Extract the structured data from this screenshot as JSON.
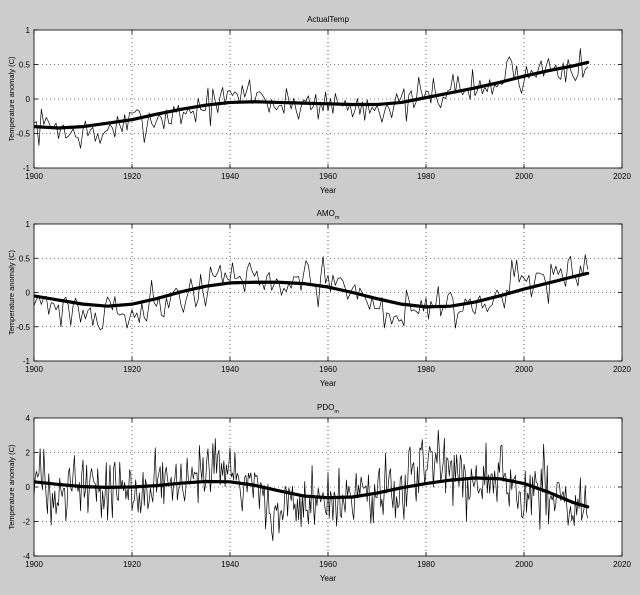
{
  "figure": {
    "background": "#cccccc",
    "axes_background": "#ffffff",
    "line_color": "#000000"
  },
  "chart_data": [
    {
      "type": "line",
      "title": "ActualTemp",
      "title_subscript": "",
      "xlabel": "Year",
      "ylabel": "Temperature anomaly (C)",
      "xlim": [
        1900,
        2020
      ],
      "ylim": [
        -1,
        1
      ],
      "xticks": [
        1900,
        1920,
        1940,
        1960,
        1980,
        2000,
        2020
      ],
      "yticks": [
        -1,
        -0.5,
        0,
        0.5,
        1
      ],
      "ytick_labels": [
        "-1",
        "-0.5",
        "0",
        "0.5",
        "1"
      ],
      "grid": true,
      "series": [
        {
          "style": "thin",
          "x_start": 1900,
          "x_end": 2013,
          "step": 0.5,
          "noise_amplitude": 0.13,
          "seed": 7,
          "anchors": [
            [
              1900,
              -0.42
            ],
            [
              1905,
              -0.36
            ],
            [
              1907,
              -0.55
            ],
            [
              1910,
              -0.47
            ],
            [
              1913,
              -0.6
            ],
            [
              1916,
              -0.35
            ],
            [
              1918,
              -0.45
            ],
            [
              1920,
              -0.32
            ],
            [
              1925,
              -0.28
            ],
            [
              1930,
              -0.2
            ],
            [
              1935,
              -0.1
            ],
            [
              1940,
              0.0
            ],
            [
              1944,
              0.12
            ],
            [
              1948,
              -0.02
            ],
            [
              1950,
              -0.12
            ],
            [
              1955,
              -0.05
            ],
            [
              1960,
              -0.05
            ],
            [
              1965,
              -0.12
            ],
            [
              1970,
              -0.08
            ],
            [
              1975,
              -0.12
            ],
            [
              1978,
              0.0
            ],
            [
              1983,
              0.1
            ],
            [
              1988,
              0.18
            ],
            [
              1992,
              0.12
            ],
            [
              1995,
              0.25
            ],
            [
              1998,
              0.48
            ],
            [
              2000,
              0.3
            ],
            [
              2005,
              0.5
            ],
            [
              2010,
              0.52
            ],
            [
              2013,
              0.4
            ]
          ]
        },
        {
          "style": "thick",
          "points": [
            [
              1900,
              -0.4
            ],
            [
              1905,
              -0.42
            ],
            [
              1910,
              -0.4
            ],
            [
              1915,
              -0.35
            ],
            [
              1920,
              -0.3
            ],
            [
              1925,
              -0.22
            ],
            [
              1930,
              -0.15
            ],
            [
              1935,
              -0.09
            ],
            [
              1940,
              -0.05
            ],
            [
              1945,
              -0.04
            ],
            [
              1950,
              -0.05
            ],
            [
              1955,
              -0.06
            ],
            [
              1960,
              -0.07
            ],
            [
              1965,
              -0.08
            ],
            [
              1970,
              -0.08
            ],
            [
              1975,
              -0.05
            ],
            [
              1980,
              0.02
            ],
            [
              1985,
              0.09
            ],
            [
              1990,
              0.16
            ],
            [
              1995,
              0.24
            ],
            [
              2000,
              0.33
            ],
            [
              2005,
              0.41
            ],
            [
              2010,
              0.48
            ],
            [
              2013,
              0.53
            ]
          ]
        }
      ]
    },
    {
      "type": "line",
      "title": "AMO",
      "title_subscript": "m",
      "xlabel": "Year",
      "ylabel": "Temperature anomaly (C)",
      "xlim": [
        1900,
        2020
      ],
      "ylim": [
        -1,
        1
      ],
      "xticks": [
        1900,
        1920,
        1940,
        1960,
        1980,
        2000,
        2020
      ],
      "yticks": [
        -1,
        -0.5,
        0,
        0.5,
        1
      ],
      "ytick_labels": [
        "-1",
        "-0.5",
        "0",
        "0.5",
        "1"
      ],
      "grid": true,
      "series": [
        {
          "style": "thin",
          "x_start": 1900,
          "x_end": 2013,
          "step": 0.5,
          "noise_amplitude": 0.14,
          "seed": 21,
          "anchors": [
            [
              1900,
              0.05
            ],
            [
              1902,
              -0.15
            ],
            [
              1905,
              -0.2
            ],
            [
              1910,
              -0.25
            ],
            [
              1913,
              -0.4
            ],
            [
              1916,
              -0.15
            ],
            [
              1918,
              -0.3
            ],
            [
              1920,
              -0.28
            ],
            [
              1925,
              -0.15
            ],
            [
              1930,
              -0.05
            ],
            [
              1935,
              0.1
            ],
            [
              1938,
              0.3
            ],
            [
              1942,
              0.15
            ],
            [
              1945,
              0.25
            ],
            [
              1950,
              0.1
            ],
            [
              1955,
              0.15
            ],
            [
              1960,
              0.12
            ],
            [
              1965,
              0.05
            ],
            [
              1970,
              -0.2
            ],
            [
              1975,
              -0.35
            ],
            [
              1980,
              -0.15
            ],
            [
              1985,
              -0.15
            ],
            [
              1990,
              -0.2
            ],
            [
              1995,
              0.0
            ],
            [
              1998,
              0.15
            ],
            [
              2003,
              0.2
            ],
            [
              2008,
              0.25
            ],
            [
              2013,
              0.25
            ]
          ]
        },
        {
          "style": "thick",
          "points": [
            [
              1900,
              -0.05
            ],
            [
              1905,
              -0.11
            ],
            [
              1910,
              -0.17
            ],
            [
              1915,
              -0.2
            ],
            [
              1920,
              -0.17
            ],
            [
              1925,
              -0.09
            ],
            [
              1930,
              0.01
            ],
            [
              1935,
              0.09
            ],
            [
              1940,
              0.14
            ],
            [
              1945,
              0.15
            ],
            [
              1950,
              0.15
            ],
            [
              1955,
              0.13
            ],
            [
              1960,
              0.08
            ],
            [
              1965,
              0.0
            ],
            [
              1970,
              -0.09
            ],
            [
              1975,
              -0.17
            ],
            [
              1980,
              -0.21
            ],
            [
              1985,
              -0.2
            ],
            [
              1990,
              -0.14
            ],
            [
              1995,
              -0.05
            ],
            [
              2000,
              0.05
            ],
            [
              2005,
              0.14
            ],
            [
              2010,
              0.23
            ],
            [
              2013,
              0.28
            ]
          ]
        }
      ]
    },
    {
      "type": "line",
      "title": "PDO",
      "title_subscript": "m",
      "xlabel": "Year",
      "ylabel": "Temperature anomaly (C)",
      "xlim": [
        1900,
        2020
      ],
      "ylim": [
        -4,
        4
      ],
      "xticks": [
        1900,
        1920,
        1940,
        1960,
        1980,
        2000,
        2020
      ],
      "yticks": [
        -4,
        -2,
        0,
        2,
        4
      ],
      "ytick_labels": [
        "-4",
        "-2",
        "0",
        "2",
        "4"
      ],
      "grid": true,
      "series": [
        {
          "style": "thin",
          "x_start": 1900,
          "x_end": 2013,
          "step": 0.25,
          "noise_amplitude": 0.95,
          "seed": 33,
          "anchors": [
            [
              1900,
              0.5
            ],
            [
              1905,
              0.0
            ],
            [
              1910,
              0.3
            ],
            [
              1915,
              -0.2
            ],
            [
              1920,
              0.0
            ],
            [
              1925,
              0.3
            ],
            [
              1930,
              0.0
            ],
            [
              1935,
              0.5
            ],
            [
              1940,
              1.0
            ],
            [
              1945,
              0.0
            ],
            [
              1948,
              -1.0
            ],
            [
              1950,
              -1.5
            ],
            [
              1955,
              -0.8
            ],
            [
              1960,
              -1.0
            ],
            [
              1965,
              -0.5
            ],
            [
              1970,
              -0.5
            ],
            [
              1975,
              -0.3
            ],
            [
              1978,
              1.0
            ],
            [
              1985,
              1.2
            ],
            [
              1990,
              0.6
            ],
            [
              1995,
              0.9
            ],
            [
              2000,
              -0.5
            ],
            [
              2005,
              0.0
            ],
            [
              2010,
              -1.0
            ],
            [
              2013,
              -1.2
            ]
          ]
        },
        {
          "style": "thick",
          "points": [
            [
              1900,
              0.3
            ],
            [
              1905,
              0.15
            ],
            [
              1910,
              0.02
            ],
            [
              1915,
              -0.02
            ],
            [
              1920,
              0.0
            ],
            [
              1925,
              0.08
            ],
            [
              1930,
              0.22
            ],
            [
              1935,
              0.32
            ],
            [
              1940,
              0.3
            ],
            [
              1945,
              0.1
            ],
            [
              1950,
              -0.22
            ],
            [
              1955,
              -0.52
            ],
            [
              1960,
              -0.62
            ],
            [
              1965,
              -0.58
            ],
            [
              1970,
              -0.35
            ],
            [
              1975,
              -0.05
            ],
            [
              1980,
              0.2
            ],
            [
              1985,
              0.4
            ],
            [
              1990,
              0.52
            ],
            [
              1995,
              0.48
            ],
            [
              2000,
              0.2
            ],
            [
              2005,
              -0.3
            ],
            [
              2010,
              -0.9
            ],
            [
              2013,
              -1.15
            ]
          ]
        }
      ]
    }
  ]
}
